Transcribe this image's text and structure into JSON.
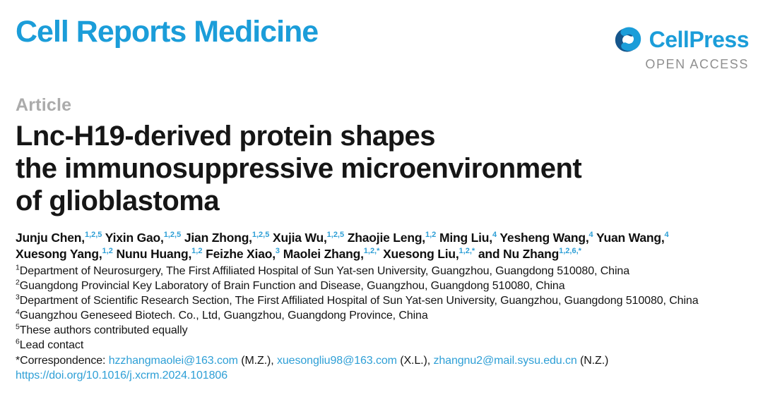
{
  "header": {
    "journal": "Cell Reports Medicine",
    "publisher": "CellPress",
    "open_access": "OPEN ACCESS",
    "icons": {
      "publisher_mark": "cellpress-interlocked-commas-icon"
    }
  },
  "article": {
    "label": "Article",
    "title_lines": [
      "Lnc-H19-derived protein shapes",
      "the immunosuppressive microenvironment",
      "of glioblastoma"
    ]
  },
  "authors_lines": [
    [
      {
        "name": "Junju Chen,",
        "sup": "1,2,5"
      },
      {
        "name": "Yixin Gao,",
        "sup": "1,2,5"
      },
      {
        "name": "Jian Zhong,",
        "sup": "1,2,5"
      },
      {
        "name": "Xujia Wu,",
        "sup": "1,2,5"
      },
      {
        "name": "Zhaojie Leng,",
        "sup": "1,2"
      },
      {
        "name": "Ming Liu,",
        "sup": "4"
      },
      {
        "name": "Yesheng Wang,",
        "sup": "4"
      },
      {
        "name": "Yuan Wang,",
        "sup": "4"
      }
    ],
    [
      {
        "name": "Xuesong Yang,",
        "sup": "1,2"
      },
      {
        "name": "Nunu Huang,",
        "sup": "1,2"
      },
      {
        "name": "Feizhe Xiao,",
        "sup": "3"
      },
      {
        "name": "Maolei Zhang,",
        "sup": "1,2,*"
      },
      {
        "name": "Xuesong Liu,",
        "sup": "1,2,*"
      },
      {
        "name": "and Nu Zhang",
        "sup": "1,2,6,*"
      }
    ]
  ],
  "affiliations": [
    {
      "sup": "1",
      "text": "Department of Neurosurgery, The First Affiliated Hospital of Sun Yat-sen University, Guangzhou, Guangdong 510080, China"
    },
    {
      "sup": "2",
      "text": "Guangdong Provincial Key Laboratory of Brain Function and Disease, Guangzhou, Guangdong 510080, China"
    },
    {
      "sup": "3",
      "text": "Department of Scientific Research Section, The First Affiliated Hospital of Sun Yat-sen University, Guangzhou, Guangdong 510080, China"
    },
    {
      "sup": "4",
      "text": "Guangzhou Geneseed Biotech. Co., Ltd, Guangzhou, Guangdong Province, China"
    },
    {
      "sup": "5",
      "text": "These authors contributed equally"
    },
    {
      "sup": "6",
      "text": "Lead contact"
    }
  ],
  "correspondence": {
    "prefix": "*Correspondence:",
    "contacts": [
      {
        "email": "hzzhangmaolei@163.com",
        "suffix": "(M.Z.),"
      },
      {
        "email": "xuesongliu98@163.com",
        "suffix": "(X.L.),"
      },
      {
        "email": "zhangnu2@mail.sysu.edu.cn",
        "suffix": "(N.Z.)"
      }
    ]
  },
  "doi": "https://doi.org/10.1016/j.xcrm.2024.101806",
  "colors": {
    "brand_cyan": "#1b9dd9",
    "brand_dark_blue": "#15568c",
    "link_blue": "#2e9fd6",
    "article_gray": "#ababab",
    "open_access_gray": "#8f8f8f",
    "text_black": "#161616"
  }
}
